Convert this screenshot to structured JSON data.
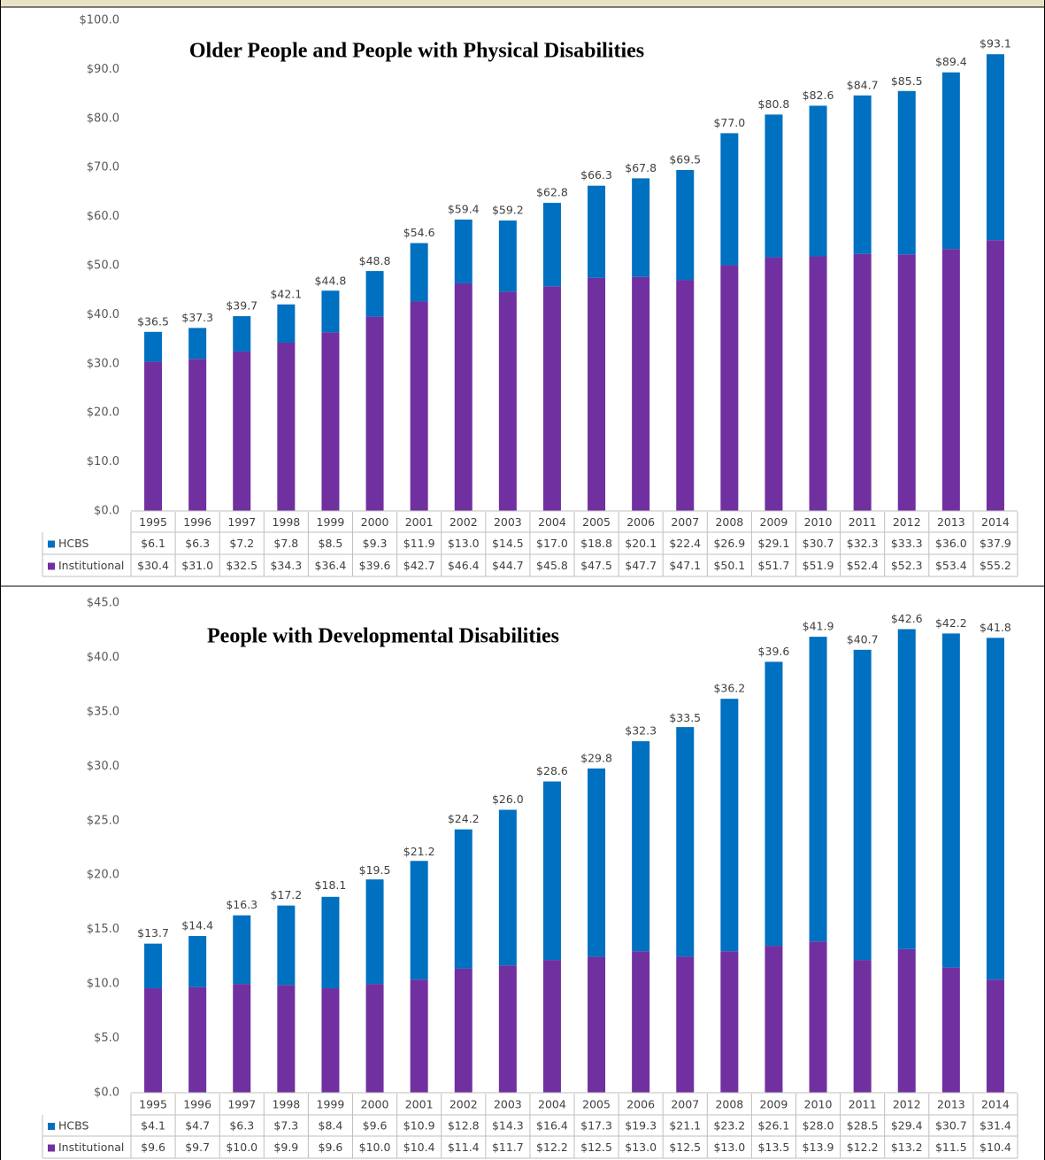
{
  "chart_data": [
    {
      "type": "bar",
      "stacked": true,
      "title": "Older People and People with Physical Disabilities",
      "categories": [
        "1995",
        "1996",
        "1997",
        "1998",
        "1999",
        "2000",
        "2001",
        "2002",
        "2003",
        "2004",
        "2005",
        "2006",
        "2007",
        "2008",
        "2009",
        "2010",
        "2011",
        "2012",
        "2013",
        "2014"
      ],
      "series": [
        {
          "name": "HCBS",
          "color": "#0070c0",
          "values": [
            6.1,
            6.3,
            7.2,
            7.8,
            8.5,
            9.3,
            11.9,
            13.0,
            14.5,
            17.0,
            18.8,
            20.1,
            22.4,
            26.9,
            29.1,
            30.7,
            32.3,
            33.3,
            36.0,
            37.9
          ],
          "value_labels": [
            "$6.1",
            "$6.3",
            "$7.2",
            "$7.8",
            "$8.5",
            "$9.3",
            "$11.9",
            "$13.0",
            "$14.5",
            "$17.0",
            "$18.8",
            "$20.1",
            "$22.4",
            "$26.9",
            "$29.1",
            "$30.7",
            "$32.3",
            "$33.3",
            "$36.0",
            "$37.9"
          ]
        },
        {
          "name": "Institutional",
          "color": "#7030a0",
          "values": [
            30.4,
            31.0,
            32.5,
            34.3,
            36.4,
            39.6,
            42.7,
            46.4,
            44.7,
            45.8,
            47.5,
            47.7,
            47.1,
            50.1,
            51.7,
            51.9,
            52.4,
            52.3,
            53.4,
            55.2
          ],
          "value_labels": [
            "$30.4",
            "$31.0",
            "$32.5",
            "$34.3",
            "$36.4",
            "$39.6",
            "$42.7",
            "$46.4",
            "$44.7",
            "$45.8",
            "$47.5",
            "$47.7",
            "$47.1",
            "$50.1",
            "$51.7",
            "$51.9",
            "$52.4",
            "$52.3",
            "$53.4",
            "$55.2"
          ]
        }
      ],
      "totals": [
        36.5,
        37.3,
        39.7,
        42.1,
        44.8,
        48.8,
        54.6,
        59.4,
        59.2,
        62.8,
        66.3,
        67.8,
        69.5,
        77.0,
        80.8,
        82.6,
        84.7,
        85.5,
        89.4,
        93.1
      ],
      "total_labels": [
        "$36.5",
        "$37.3",
        "$39.7",
        "$42.1",
        "$44.8",
        "$48.8",
        "$54.6",
        "$59.4",
        "$59.2",
        "$62.8",
        "$66.3",
        "$67.8",
        "$69.5",
        "$77.0",
        "$80.8",
        "$82.6",
        "$84.7",
        "$85.5",
        "$89.4",
        "$93.1"
      ],
      "ylim": [
        0,
        100
      ],
      "yticks": [
        {
          "value": 0,
          "label": "$0.0"
        },
        {
          "value": 10,
          "label": "$10.0"
        },
        {
          "value": 20,
          "label": "$20.0"
        },
        {
          "value": 30,
          "label": "$30.0"
        },
        {
          "value": 40,
          "label": "$40.0"
        },
        {
          "value": 50,
          "label": "$50.0"
        },
        {
          "value": 60,
          "label": "$60.0"
        },
        {
          "value": 70,
          "label": "$70.0"
        },
        {
          "value": 80,
          "label": "$80.0"
        },
        {
          "value": 90,
          "label": "$90.0"
        },
        {
          "value": 100,
          "label": "$100.0"
        }
      ]
    },
    {
      "type": "bar",
      "stacked": true,
      "title": "People with Developmental Disabilities",
      "categories": [
        "1995",
        "1996",
        "1997",
        "1998",
        "1999",
        "2000",
        "2001",
        "2002",
        "2003",
        "2004",
        "2005",
        "2006",
        "2007",
        "2008",
        "2009",
        "2010",
        "2011",
        "2012",
        "2013",
        "2014"
      ],
      "series": [
        {
          "name": "HCBS",
          "color": "#0070c0",
          "values": [
            4.1,
            4.7,
            6.3,
            7.3,
            8.4,
            9.6,
            10.9,
            12.8,
            14.3,
            16.4,
            17.3,
            19.3,
            21.1,
            23.2,
            26.1,
            28.0,
            28.5,
            29.4,
            30.7,
            31.4
          ],
          "value_labels": [
            "$4.1",
            "$4.7",
            "$6.3",
            "$7.3",
            "$8.4",
            "$9.6",
            "$10.9",
            "$12.8",
            "$14.3",
            "$16.4",
            "$17.3",
            "$19.3",
            "$21.1",
            "$23.2",
            "$26.1",
            "$28.0",
            "$28.5",
            "$29.4",
            "$30.7",
            "$31.4"
          ]
        },
        {
          "name": "Institutional",
          "color": "#7030a0",
          "values": [
            9.6,
            9.7,
            10.0,
            9.9,
            9.6,
            10.0,
            10.4,
            11.4,
            11.7,
            12.2,
            12.5,
            13.0,
            12.5,
            13.0,
            13.5,
            13.9,
            12.2,
            13.2,
            11.5,
            10.4
          ],
          "value_labels": [
            "$9.6",
            "$9.7",
            "$10.0",
            "$9.9",
            "$9.6",
            "$10.0",
            "$10.4",
            "$11.4",
            "$11.7",
            "$12.2",
            "$12.5",
            "$13.0",
            "$12.5",
            "$13.0",
            "$13.5",
            "$13.9",
            "$12.2",
            "$13.2",
            "$11.5",
            "$10.4"
          ]
        }
      ],
      "totals": [
        13.7,
        14.4,
        16.3,
        17.2,
        18.1,
        19.5,
        21.2,
        24.2,
        26.0,
        28.6,
        29.8,
        32.3,
        33.5,
        36.2,
        39.6,
        41.9,
        40.7,
        42.6,
        42.2,
        41.8
      ],
      "total_labels": [
        "$13.7",
        "$14.4",
        "$16.3",
        "$17.2",
        "$18.1",
        "$19.5",
        "$21.2",
        "$24.2",
        "$26.0",
        "$28.6",
        "$29.8",
        "$32.3",
        "$33.5",
        "$36.2",
        "$39.6",
        "$41.9",
        "$40.7",
        "$42.6",
        "$42.2",
        "$41.8"
      ],
      "ylim": [
        0,
        45
      ],
      "yticks": [
        {
          "value": 0,
          "label": "$0.0"
        },
        {
          "value": 5,
          "label": "$5.0"
        },
        {
          "value": 10,
          "label": "$10.0"
        },
        {
          "value": 15,
          "label": "$15.0"
        },
        {
          "value": 20,
          "label": "$20.0"
        },
        {
          "value": 25,
          "label": "$25.0"
        },
        {
          "value": 30,
          "label": "$30.0"
        },
        {
          "value": 35,
          "label": "$35.0"
        },
        {
          "value": 40,
          "label": "$40.0"
        },
        {
          "value": 45,
          "label": "$45.0"
        }
      ]
    }
  ]
}
